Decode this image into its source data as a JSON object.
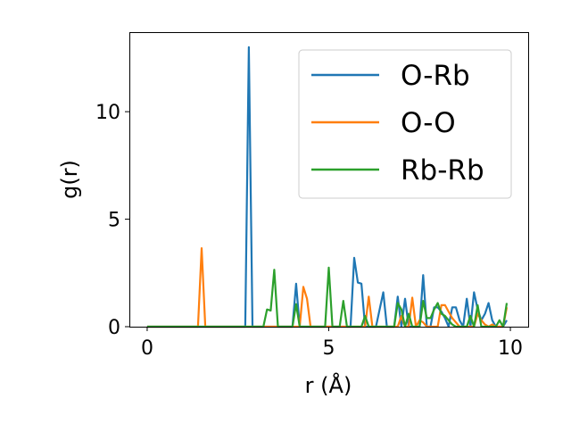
{
  "chart_data": {
    "type": "line",
    "title": "",
    "xlabel": "r (Å)",
    "ylabel": "g(r)",
    "xlim": [
      -0.49,
      10.49
    ],
    "ylim": [
      0,
      13.7
    ],
    "xticks": [
      0,
      5,
      10
    ],
    "yticks": [
      0,
      5,
      10
    ],
    "grid": false,
    "legend_position": "top-right",
    "x_start": 0,
    "x_step": 0.1,
    "series": [
      {
        "name": "O-Rb",
        "color": "#1f77b4",
        "values": [
          0,
          0,
          0,
          0,
          0,
          0,
          0,
          0,
          0,
          0,
          0,
          0,
          0,
          0,
          0,
          0,
          0,
          0,
          0,
          0,
          0,
          0,
          0,
          0,
          0,
          0,
          0,
          0,
          13.0,
          0,
          0,
          0,
          0,
          0,
          0,
          0,
          0,
          0,
          0,
          0,
          0,
          2.0,
          0,
          0,
          0,
          0,
          0,
          0,
          0,
          0,
          0,
          0,
          0,
          0,
          0,
          0,
          0,
          3.2,
          2.05,
          2.0,
          0,
          0,
          0,
          0,
          0.8,
          1.6,
          0,
          0,
          0,
          1.4,
          0,
          1.3,
          0,
          0,
          0,
          0,
          2.4,
          0,
          0,
          0.9,
          0.9,
          0.7,
          0.4,
          0,
          0.9,
          0.9,
          0.3,
          0,
          1.3,
          0,
          1.6,
          0.8,
          0.3,
          0.6,
          1.1,
          0.3,
          0,
          0,
          0,
          0.3
        ]
      },
      {
        "name": "O-O",
        "color": "#ff7f0e",
        "values": [
          0,
          0,
          0,
          0,
          0,
          0,
          0,
          0,
          0,
          0,
          0,
          0,
          0,
          0,
          0,
          3.65,
          0,
          0,
          0,
          0,
          0,
          0,
          0,
          0,
          0,
          0,
          0,
          0,
          0,
          0,
          0,
          0,
          0,
          0,
          0,
          0,
          0,
          0,
          0,
          0,
          0,
          0,
          0,
          1.85,
          1.3,
          0,
          0,
          0,
          0,
          0,
          0,
          0,
          0,
          0,
          0,
          0,
          0,
          0,
          0,
          0,
          0,
          1.4,
          0,
          0,
          0,
          0,
          0,
          0,
          0,
          0,
          0.5,
          0,
          0,
          1.35,
          0,
          0.3,
          0.2,
          0,
          0,
          0,
          0,
          1.0,
          1.0,
          0.7,
          0.4,
          0.2,
          0,
          0,
          0,
          0,
          0,
          0.6,
          0.3,
          0.1,
          0,
          0.1,
          0,
          0,
          0,
          0.9
        ]
      },
      {
        "name": "Rb-Rb",
        "color": "#2ca02c",
        "values": [
          0,
          0,
          0,
          0,
          0,
          0,
          0,
          0,
          0,
          0,
          0,
          0,
          0,
          0,
          0,
          0,
          0,
          0,
          0,
          0,
          0,
          0,
          0,
          0,
          0,
          0,
          0,
          0,
          0,
          0,
          0,
          0,
          0,
          0.8,
          0.75,
          2.65,
          0,
          0,
          0,
          0,
          0,
          1.05,
          0,
          0,
          0,
          0,
          0,
          0,
          0,
          0,
          2.75,
          0,
          0,
          0,
          1.2,
          0,
          0,
          0,
          0,
          0,
          0.5,
          0,
          0,
          0,
          0,
          0,
          0,
          0,
          0,
          1.1,
          0.8,
          0,
          0.6,
          0,
          0,
          0,
          1.2,
          0.4,
          0.4,
          0.8,
          1.1,
          0.6,
          0.5,
          0.3,
          0.1,
          0,
          0,
          0,
          0,
          0.5,
          0,
          1.0,
          0,
          0,
          0,
          0,
          0,
          0.3,
          0,
          1.1
        ]
      }
    ]
  }
}
